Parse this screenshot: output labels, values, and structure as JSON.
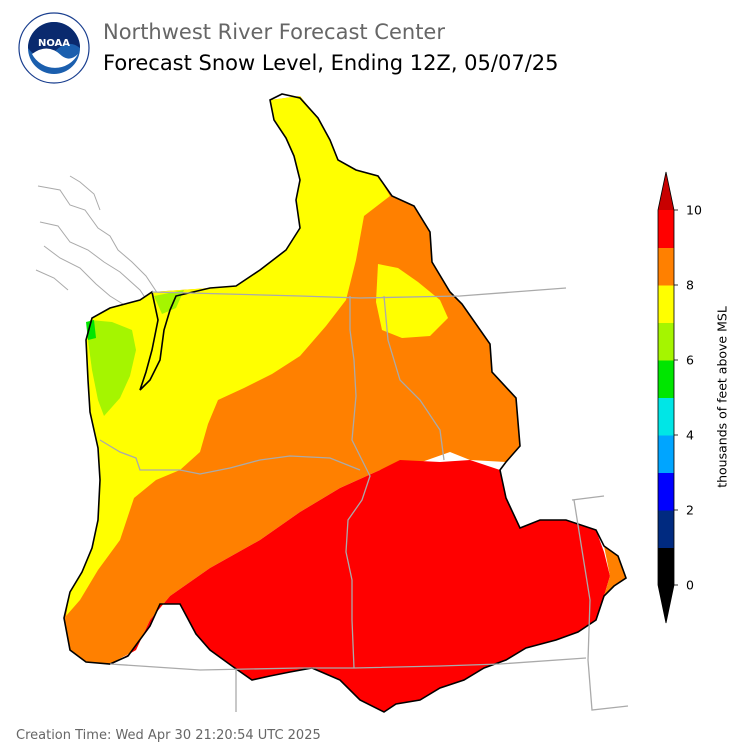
{
  "header": {
    "agency": "Northwest River Forecast Center",
    "product": "Forecast Snow Level, Ending 12Z, 05/07/25"
  },
  "logo": {
    "center_text": "NOAA",
    "ring_text": "NATIONAL OCEANIC AND ATMOSPHERIC ADMINISTRATION · U.S. DEPARTMENT OF COMMERCE"
  },
  "legend": {
    "label": "thousands of feet above MSL",
    "ticks": [
      "0",
      "2",
      "4",
      "6",
      "8",
      "10"
    ],
    "colors": [
      "#000000",
      "#002a80",
      "#0000ff",
      "#00a5ff",
      "#00e6e6",
      "#00e600",
      "#a5f500",
      "#ffff00",
      "#ff8000",
      "#ff0000",
      "#c80000"
    ],
    "over_color": "#c80000",
    "under_color": "#000000"
  },
  "map": {
    "zones": [
      {
        "name": "coastal-lowland",
        "level_kft": "6–7",
        "color": "#a5f500"
      },
      {
        "name": "western-washington-oregon",
        "level_kft": "7–8",
        "color": "#ffff00"
      },
      {
        "name": "central-basin",
        "level_kft": "8–9",
        "color": "#ff8000"
      },
      {
        "name": "southeast-region",
        "level_kft": "9–10",
        "color": "#ff0000"
      }
    ]
  },
  "footer": {
    "creation_time": "Creation Time: Wed Apr 30 21:20:54 UTC 2025"
  }
}
